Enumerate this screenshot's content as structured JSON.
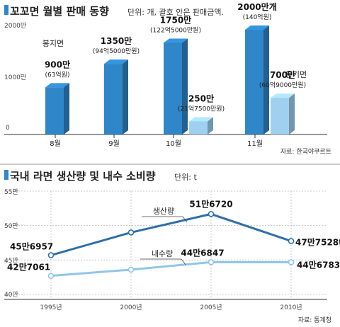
{
  "charts": {
    "monthly": {
      "title": "꼬꼬면 월별 판매 동향",
      "unit": "단위: 개, 괄호 안은 판매금액.",
      "source": "자료: 한국야쿠르트",
      "brand_labels": [
        "봉지면",
        "용기면"
      ],
      "y_ticks": [
        "2000만",
        "1000만",
        "0"
      ]
    },
    "ramen": {
      "title": "국내 라면 생산량 및 내수 소비량",
      "unit": "단위: t",
      "source": "자료: 통계청",
      "y_ticks": [
        "55만",
        "50만",
        "45만",
        "40만"
      ],
      "x_ticks": [
        "1995년",
        "2000년",
        "2005년",
        "2010년"
      ]
    }
  },
  "chart_data": [
    {
      "type": "bar",
      "title": "꼬꼬면 월별 판매 동향",
      "unit_note": "단위: 개, 괄호 안은 판매금액.",
      "categories": [
        "8월",
        "9월",
        "10월",
        "11월"
      ],
      "series": [
        {
          "name": "봉지면",
          "values": [
            900,
            1350,
            1750,
            2000
          ],
          "labels": [
            "900만",
            "1350만",
            "1750만",
            "2000만개"
          ],
          "amounts": [
            "(63억원)",
            "(94억5000만원)",
            "(122억5000만원)",
            "(140억원)"
          ],
          "color": "#2f86c8"
        },
        {
          "name": "용기면",
          "values": [
            null,
            null,
            250,
            700
          ],
          "labels": [
            "",
            "",
            "250만",
            "700만"
          ],
          "amounts": [
            "",
            "",
            "(21억7500만원)",
            "(60억9000만원)"
          ],
          "color": "#9fd0ef"
        }
      ],
      "ylim": [
        0,
        2000
      ],
      "y_ticks": [
        0,
        1000,
        2000
      ],
      "source": "자료: 한국야쿠르트"
    },
    {
      "type": "line",
      "title": "국내 라면 생산량 및 내수 소비량",
      "unit_note": "단위: t",
      "x": [
        1995,
        2000,
        2005,
        2010
      ],
      "series": [
        {
          "name": "생산량",
          "values": [
            456957,
            490000,
            516720,
            477528
          ],
          "labels": [
            "45만6957",
            "",
            "51만6720",
            "47만7528t"
          ],
          "color": "#2e6fa8"
        },
        {
          "name": "내수량",
          "values": [
            427061,
            436000,
            446847,
            446783
          ],
          "labels": [
            "42만7061",
            "",
            "44만6847",
            "44만6783"
          ],
          "color": "#8fc6ea"
        }
      ],
      "ylim": [
        400000,
        550000
      ],
      "y_ticks": [
        400000,
        450000,
        500000,
        550000
      ],
      "source": "자료: 통계청"
    }
  ]
}
